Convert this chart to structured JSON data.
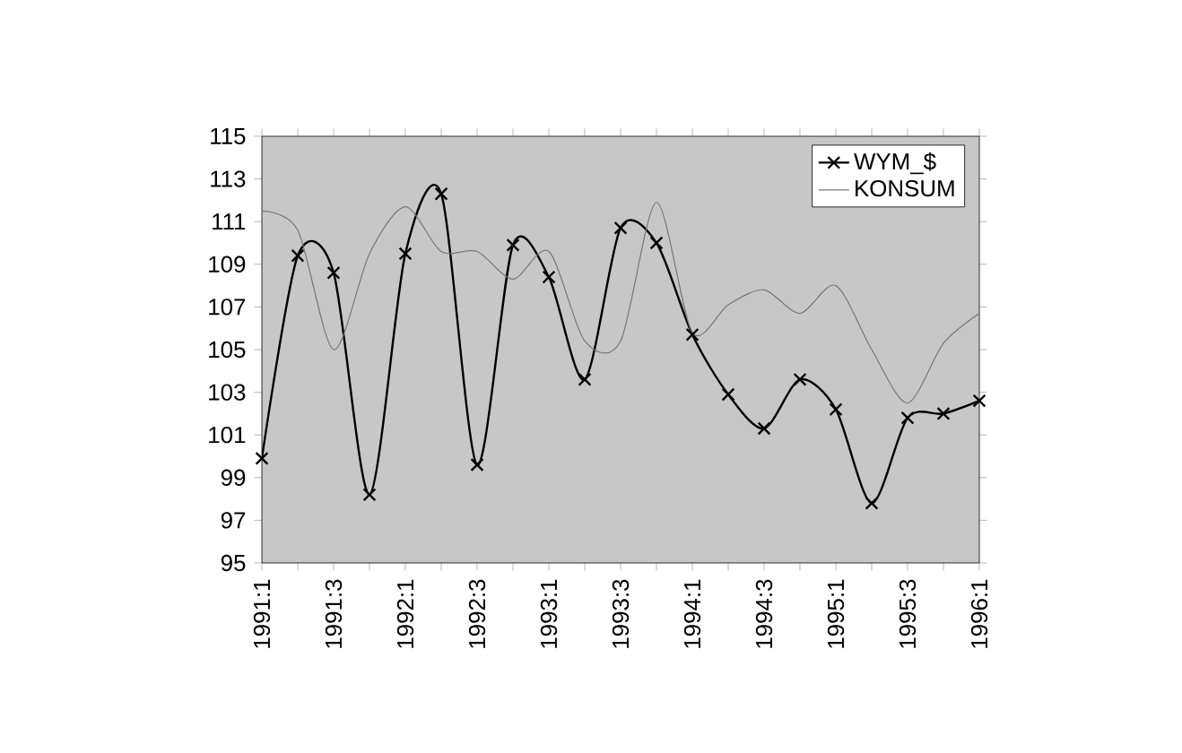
{
  "chart_data": {
    "type": "line",
    "categories": [
      "1991:1",
      null,
      "1991:3",
      null,
      "1992:1",
      null,
      "1992:3",
      null,
      "1993:1",
      null,
      "1993:3",
      null,
      "1994:1",
      null,
      "1994:3",
      null,
      "1995:1",
      null,
      "1995:3",
      null,
      "1996:1"
    ],
    "ylim": [
      95,
      115
    ],
    "yticks": [
      95,
      97,
      99,
      101,
      103,
      105,
      107,
      109,
      111,
      113,
      115
    ],
    "grid": false,
    "legend": "top right",
    "series": [
      {
        "name": "WYM_$",
        "color": "#000000",
        "marker": "cross",
        "values": [
          99.9,
          109.4,
          108.6,
          98.2,
          109.5,
          112.3,
          99.6,
          109.9,
          108.4,
          103.6,
          110.7,
          110.0,
          105.7,
          102.9,
          101.3,
          103.6,
          102.2,
          97.8,
          101.8,
          102.0,
          102.6
        ]
      },
      {
        "name": "KONSUM",
        "color": "#777777",
        "marker": "none",
        "values": [
          111.5,
          110.6,
          105.0,
          109.5,
          111.7,
          109.6,
          109.6,
          108.3,
          109.6,
          105.4,
          105.4,
          111.9,
          105.8,
          107.1,
          107.8,
          106.7,
          108.0,
          105.0,
          102.5,
          105.3,
          106.7
        ]
      }
    ]
  }
}
